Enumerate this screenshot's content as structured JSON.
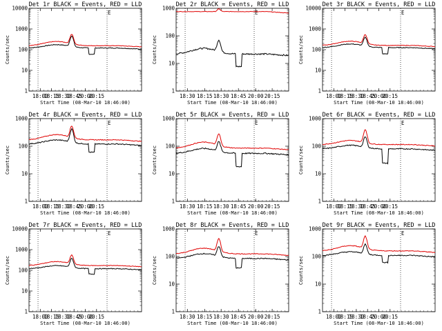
{
  "figure": {
    "description_free": true
  },
  "chart_data": [
    {
      "type": "line",
      "title": "Det 1r BLACK = Events, RED = LLD",
      "xlabel": "Start Time (08-Mar-10 18:46:00)",
      "ylabel": "Counts/sec",
      "yscale": "log",
      "ylim": [
        1,
        10000
      ],
      "xlim": [
        0,
        150
      ],
      "xticks": [
        {
          "t": 15,
          "label": "18:00"
        },
        {
          "t": 30,
          "label": "18:15"
        },
        {
          "t": 45,
          "label": "18:30"
        },
        {
          "t": 60,
          "label": "18:45"
        },
        {
          "t": 75,
          "label": "20:00"
        },
        {
          "t": 90,
          "label": "20:15"
        }
      ],
      "vlines": [
        12,
        104
      ],
      "marker": "E",
      "marker_t": 104,
      "series": [
        {
          "name": "Events",
          "color": "#000000",
          "baseline": 120,
          "hump": [
            37,
            15,
            1.45
          ],
          "peak": [
            57,
            2,
            3.2
          ],
          "dip": [
            80,
            87,
            0.5
          ],
          "noise": 0.04
        },
        {
          "name": "LLD",
          "color": "#e00000",
          "baseline": 155,
          "hump": [
            37,
            15,
            1.6
          ],
          "peak": [
            57,
            2,
            2.9
          ],
          "dip": null,
          "noise": 0.03
        }
      ]
    },
    {
      "type": "line",
      "title": "Det 2r BLACK = Events, RED = LLD",
      "xlabel": "Start Time (08-Mar-10 18:46:00)",
      "ylabel": "Counts/sec",
      "yscale": "log",
      "ylim": [
        1,
        1000
      ],
      "xlim": [
        0,
        150
      ],
      "xticks": [
        {
          "t": 15,
          "label": "18:30"
        },
        {
          "t": 38,
          "label": "18:15"
        },
        {
          "t": 60,
          "label": "18:30"
        },
        {
          "t": 83,
          "label": "18:45"
        },
        {
          "t": 106,
          "label": "20:00"
        },
        {
          "t": 128,
          "label": "20:15"
        }
      ],
      "vlines": [
        12,
        104
      ],
      "marker": "E",
      "marker_t": 104,
      "series": [
        {
          "name": "Events",
          "color": "#000000",
          "baseline": 22,
          "hump": [
            37,
            15,
            1.6
          ],
          "peak": [
            57,
            2,
            2.6
          ],
          "dip": [
            80,
            87,
            0.35
          ],
          "noise": 0.06
        },
        {
          "name": "LLD",
          "color": "#e00000",
          "baseline": 760,
          "hump": null,
          "peak": [
            57,
            2,
            1.25
          ],
          "dip": null,
          "noise": 0.02
        }
      ]
    },
    {
      "type": "line",
      "title": "Det 3r BLACK = Events, RED = LLD",
      "xlabel": "Start Time (08-Mar-10 18:46:00)",
      "ylabel": "Counts/sec",
      "yscale": "log",
      "ylim": [
        1,
        10000
      ],
      "xlim": [
        0,
        150
      ],
      "xticks": [
        {
          "t": 15,
          "label": "18:00"
        },
        {
          "t": 30,
          "label": "18:15"
        },
        {
          "t": 45,
          "label": "18:30"
        },
        {
          "t": 60,
          "label": "18:45"
        },
        {
          "t": 75,
          "label": "20:00"
        },
        {
          "t": 90,
          "label": "20:15"
        }
      ],
      "vlines": [
        12,
        104
      ],
      "marker": "E",
      "marker_t": 104,
      "series": [
        {
          "name": "Events",
          "color": "#000000",
          "baseline": 125,
          "hump": [
            37,
            15,
            1.5
          ],
          "peak": [
            57,
            2,
            2.6
          ],
          "dip": [
            80,
            87,
            0.5
          ],
          "noise": 0.04
        },
        {
          "name": "LLD",
          "color": "#e00000",
          "baseline": 160,
          "hump": [
            37,
            15,
            1.6
          ],
          "peak": [
            57,
            2,
            2.7
          ],
          "dip": null,
          "noise": 0.03
        }
      ]
    },
    {
      "type": "line",
      "title": "Det 4r BLACK = Events, RED = LLD",
      "xlabel": "Start Time (08-Mar-10 18:46:00)",
      "ylabel": "Counts/sec",
      "yscale": "log",
      "ylim": [
        1,
        1000
      ],
      "xlim": [
        0,
        150
      ],
      "xticks": [
        {
          "t": 15,
          "label": "18:00"
        },
        {
          "t": 30,
          "label": "18:15"
        },
        {
          "t": 45,
          "label": "18:30"
        },
        {
          "t": 60,
          "label": "18:45"
        },
        {
          "t": 75,
          "label": "20:00"
        },
        {
          "t": 90,
          "label": "20:15"
        }
      ],
      "vlines": [
        12,
        104
      ],
      "marker": "E",
      "marker_t": 104,
      "series": [
        {
          "name": "Events",
          "color": "#000000",
          "baseline": 120,
          "hump": [
            37,
            15,
            1.4
          ],
          "peak": [
            57,
            2,
            3.0
          ],
          "dip": [
            80,
            87,
            0.5
          ],
          "noise": 0.04
        },
        {
          "name": "LLD",
          "color": "#e00000",
          "baseline": 170,
          "hump": [
            37,
            15,
            1.55
          ],
          "peak": [
            57,
            2,
            2.6
          ],
          "dip": null,
          "noise": 0.03
        }
      ]
    },
    {
      "type": "line",
      "title": "Det 5r BLACK = Events, RED = LLD",
      "xlabel": "Start Time (08-Mar-10 18:46:00)",
      "ylabel": "Counts/sec",
      "yscale": "log",
      "ylim": [
        1,
        1000
      ],
      "xlim": [
        0,
        150
      ],
      "xticks": [
        {
          "t": 15,
          "label": "18:30"
        },
        {
          "t": 38,
          "label": "18:15"
        },
        {
          "t": 60,
          "label": "18:30"
        },
        {
          "t": 83,
          "label": "18:45"
        },
        {
          "t": 106,
          "label": "20:00"
        },
        {
          "t": 128,
          "label": "20:15"
        }
      ],
      "vlines": [
        12,
        104
      ],
      "marker": "E",
      "marker_t": 104,
      "series": [
        {
          "name": "Events",
          "color": "#000000",
          "baseline": 55,
          "hump": [
            37,
            15,
            1.5
          ],
          "peak": [
            57,
            2,
            2.2
          ],
          "dip": [
            80,
            87,
            0.33
          ],
          "noise": 0.05
        },
        {
          "name": "LLD",
          "color": "#e00000",
          "baseline": 85,
          "hump": [
            37,
            15,
            1.65
          ],
          "peak": [
            57,
            2,
            2.6
          ],
          "dip": null,
          "noise": 0.03
        }
      ]
    },
    {
      "type": "line",
      "title": "Det 6r BLACK = Events, RED = LLD",
      "xlabel": "Start Time (08-Mar-10 18:46:00)",
      "ylabel": "Counts/sec",
      "yscale": "log",
      "ylim": [
        1,
        1000
      ],
      "xlim": [
        0,
        150
      ],
      "xticks": [
        {
          "t": 15,
          "label": "18:00"
        },
        {
          "t": 30,
          "label": "18:15"
        },
        {
          "t": 45,
          "label": "18:30"
        },
        {
          "t": 60,
          "label": "18:45"
        },
        {
          "t": 75,
          "label": "20:00"
        },
        {
          "t": 90,
          "label": "20:15"
        }
      ],
      "vlines": [
        12,
        104
      ],
      "marker": "E",
      "marker_t": 104,
      "series": [
        {
          "name": "Events",
          "color": "#000000",
          "baseline": 80,
          "hump": [
            37,
            15,
            1.35
          ],
          "peak": [
            57,
            2,
            2.4
          ],
          "dip": [
            80,
            87,
            0.3
          ],
          "noise": 0.04
        },
        {
          "name": "LLD",
          "color": "#e00000",
          "baseline": 115,
          "hump": [
            37,
            15,
            1.4
          ],
          "peak": [
            57,
            2,
            3.0
          ],
          "dip": null,
          "noise": 0.03
        }
      ]
    },
    {
      "type": "line",
      "title": "Det 7r BLACK = Events, RED = LLD",
      "xlabel": "Start Time (08-Mar-10 18:46:00)",
      "ylabel": "Counts/sec",
      "yscale": "log",
      "ylim": [
        1,
        10000
      ],
      "xlim": [
        0,
        150
      ],
      "xticks": [
        {
          "t": 15,
          "label": "18:00"
        },
        {
          "t": 30,
          "label": "18:15"
        },
        {
          "t": 45,
          "label": "18:30"
        },
        {
          "t": 60,
          "label": "18:45"
        },
        {
          "t": 75,
          "label": "20:00"
        },
        {
          "t": 90,
          "label": "20:15"
        }
      ],
      "vlines": [
        12,
        104
      ],
      "marker": "E",
      "marker_t": 104,
      "series": [
        {
          "name": "Events",
          "color": "#000000",
          "baseline": 120,
          "hump": [
            37,
            15,
            1.4
          ],
          "peak": [
            57,
            2,
            2.7
          ],
          "dip": [
            80,
            87,
            0.55
          ],
          "noise": 0.04
        },
        {
          "name": "LLD",
          "color": "#e00000",
          "baseline": 170,
          "hump": [
            37,
            15,
            1.55
          ],
          "peak": [
            57,
            2,
            2.6
          ],
          "dip": null,
          "noise": 0.03
        }
      ]
    },
    {
      "type": "line",
      "title": "Det 8r BLACK = Events, RED = LLD",
      "xlabel": "Start Time (08-Mar-10 18:46:00)",
      "ylabel": "Counts/sec",
      "yscale": "log",
      "ylim": [
        1,
        1000
      ],
      "xlim": [
        0,
        150
      ],
      "xticks": [
        {
          "t": 15,
          "label": "18:30"
        },
        {
          "t": 38,
          "label": "18:15"
        },
        {
          "t": 60,
          "label": "18:30"
        },
        {
          "t": 83,
          "label": "18:45"
        },
        {
          "t": 106,
          "label": "20:00"
        },
        {
          "t": 128,
          "label": "20:15"
        }
      ],
      "vlines": [
        12,
        104
      ],
      "marker": "E",
      "marker_t": 104,
      "series": [
        {
          "name": "Events",
          "color": "#000000",
          "baseline": 85,
          "hump": [
            37,
            15,
            1.5
          ],
          "peak": [
            57,
            2,
            2.3
          ],
          "dip": [
            80,
            87,
            0.45
          ],
          "noise": 0.04
        },
        {
          "name": "LLD",
          "color": "#e00000",
          "baseline": 125,
          "hump": [
            37,
            15,
            1.6
          ],
          "peak": [
            57,
            2,
            2.9
          ],
          "dip": null,
          "noise": 0.03
        }
      ]
    },
    {
      "type": "line",
      "title": "Det 9r BLACK = Events, RED = LLD",
      "xlabel": "Start Time (08-Mar-10 18:46:00)",
      "ylabel": "Counts/sec",
      "yscale": "log",
      "ylim": [
        1,
        1000
      ],
      "xlim": [
        0,
        150
      ],
      "xticks": [
        {
          "t": 15,
          "label": "18:00"
        },
        {
          "t": 30,
          "label": "18:15"
        },
        {
          "t": 45,
          "label": "18:30"
        },
        {
          "t": 60,
          "label": "18:45"
        },
        {
          "t": 75,
          "label": "20:00"
        },
        {
          "t": 90,
          "label": "20:15"
        }
      ],
      "vlines": [
        12,
        104
      ],
      "marker": "E",
      "marker_t": 104,
      "series": [
        {
          "name": "Events",
          "color": "#000000",
          "baseline": 110,
          "hump": [
            37,
            15,
            1.35
          ],
          "peak": [
            57,
            2,
            2.2
          ],
          "dip": [
            80,
            87,
            0.55
          ],
          "noise": 0.04
        },
        {
          "name": "LLD",
          "color": "#e00000",
          "baseline": 160,
          "hump": [
            37,
            15,
            1.55
          ],
          "peak": [
            57,
            2,
            2.8
          ],
          "dip": null,
          "noise": 0.03
        }
      ]
    }
  ]
}
